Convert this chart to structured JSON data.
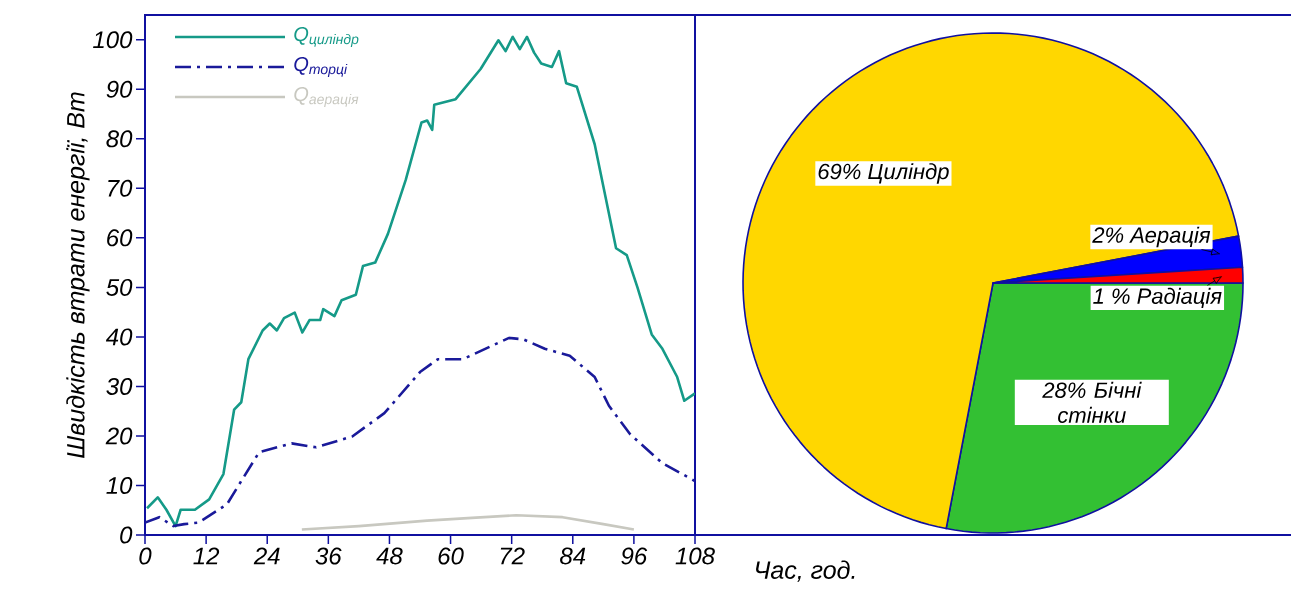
{
  "chart_data": [
    {
      "type": "line",
      "xlabel": "Час, год.",
      "ylabel": "Швидкість втрати енергії, Вт",
      "xlim": [
        0,
        108
      ],
      "xticks": [
        0,
        12,
        24,
        36,
        48,
        60,
        72,
        84,
        96,
        108
      ],
      "ylim": [
        0,
        105
      ],
      "yticks": [
        0,
        10,
        20,
        30,
        40,
        50,
        60,
        70,
        80,
        90,
        100
      ],
      "legend": "top left",
      "series": [
        {
          "name": "Q$_{циліндр}$",
          "color": "#159a88",
          "line_style": "solid",
          "x": [
            0.4,
            2.5,
            4.2,
            6,
            7,
            9.8,
            12.6,
            15.4,
            17.5,
            18.9,
            20.3,
            23.1,
            24.5,
            25.9,
            27.3,
            29.4,
            30.9,
            32.3,
            34.4,
            35,
            37.2,
            38.6,
            41.4,
            42.8,
            45.2,
            47.7,
            51.2,
            54.3,
            55.4,
            56.4,
            56.8,
            61,
            65.9,
            69.4,
            70.8,
            72.2,
            73.6,
            75,
            76.4,
            77.8,
            79.9,
            81.3,
            82.7,
            84.8,
            88.3,
            92.5,
            94.6,
            96.7,
            99.5,
            101.6,
            104.5,
            105.9,
            108
          ],
          "values": [
            5.4,
            7.6,
            5.1,
            1.8,
            5.1,
            5.1,
            7.2,
            12.3,
            25.3,
            26.8,
            35.5,
            41.3,
            42.7,
            41.3,
            43.8,
            44.9,
            40.9,
            43.4,
            43.4,
            45.6,
            44.2,
            47.4,
            48.5,
            54.3,
            55,
            60.8,
            71.7,
            83.3,
            83.7,
            81.8,
            86.9,
            88,
            94.1,
            99.9,
            97.7,
            100.6,
            98.1,
            100.6,
            97.4,
            95.2,
            94.5,
            97.7,
            91.2,
            90.5,
            78.9,
            57.9,
            56.5,
            50,
            40.5,
            37.6,
            31.9,
            27.1,
            28.6
          ]
        },
        {
          "name": "Q$_{торці}$",
          "color": "#1a1a9a",
          "line_style": "dashed",
          "x": [
            0,
            2.8,
            5.6,
            7.7,
            10.5,
            16.1,
            18.9,
            22.4,
            28.8,
            33.6,
            40.7,
            47,
            54,
            57.5,
            62.4,
            71.5,
            74.3,
            78.5,
            83.4,
            88.3,
            91.1,
            95.3,
            101.6,
            108
          ],
          "values": [
            2.5,
            3.6,
            1.8,
            2.2,
            2.5,
            6.2,
            10.9,
            16.7,
            18.5,
            17.7,
            19.9,
            24.6,
            32.9,
            35.5,
            35.5,
            39.8,
            39.5,
            37.6,
            36.2,
            31.9,
            26.1,
            20.3,
            14.5,
            10.9
          ]
        },
        {
          "name": "Q$_{аерація}$",
          "color": "#c8c8c0",
          "line_style": "solid",
          "x": [
            30.8,
            42,
            55.4,
            65,
            72.9,
            82,
            90,
            96
          ],
          "values": [
            1.1,
            1.8,
            2.9,
            3.5,
            4,
            3.6,
            2.2,
            1.1
          ]
        }
      ]
    },
    {
      "type": "pie",
      "categories": [
        "Бічні стінки",
        "Циліндр",
        "Аерація",
        "Радіація"
      ],
      "values": [
        28,
        69,
        2,
        1
      ],
      "colors": [
        "#33c033",
        "#ffd700",
        "#0000ff",
        "#ff0000"
      ],
      "value_labels": [
        "28%",
        "69%",
        "2%",
        "1 %"
      ]
    }
  ]
}
